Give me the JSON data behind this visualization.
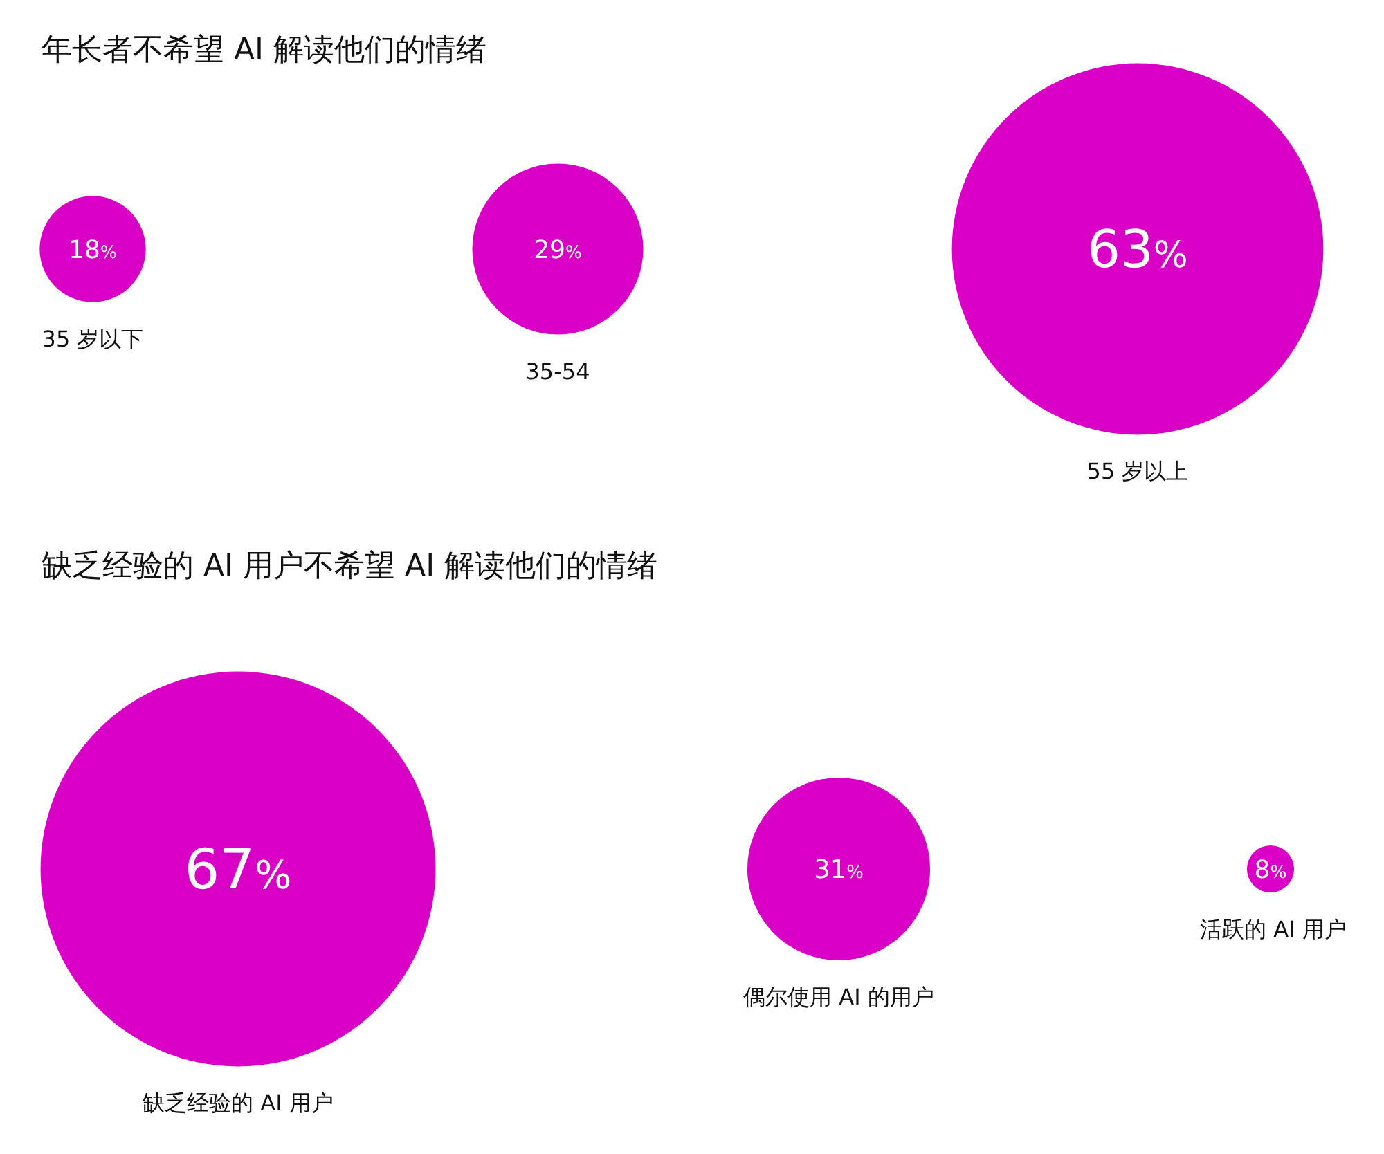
{
  "chart_data": [
    {
      "type": "other",
      "title": "年长者不希望 AI 解读他们的情绪",
      "categories": [
        "35 岁以下",
        "35-54",
        "55 岁以上"
      ],
      "values": [
        18,
        29,
        63
      ],
      "value_labels": [
        "18%",
        "29%",
        "63%"
      ],
      "color": "#d800c4"
    },
    {
      "type": "other",
      "title": "缺乏经验的 AI 用户不希望 AI 解读他们的情绪",
      "categories": [
        "缺乏经验的 AI 用户",
        "偶尔使用 AI 的用户",
        "活跃的 AI 用户"
      ],
      "values": [
        67,
        31,
        8
      ],
      "value_labels": [
        "67%",
        "31%",
        "8%"
      ],
      "color": "#d800c4"
    }
  ]
}
